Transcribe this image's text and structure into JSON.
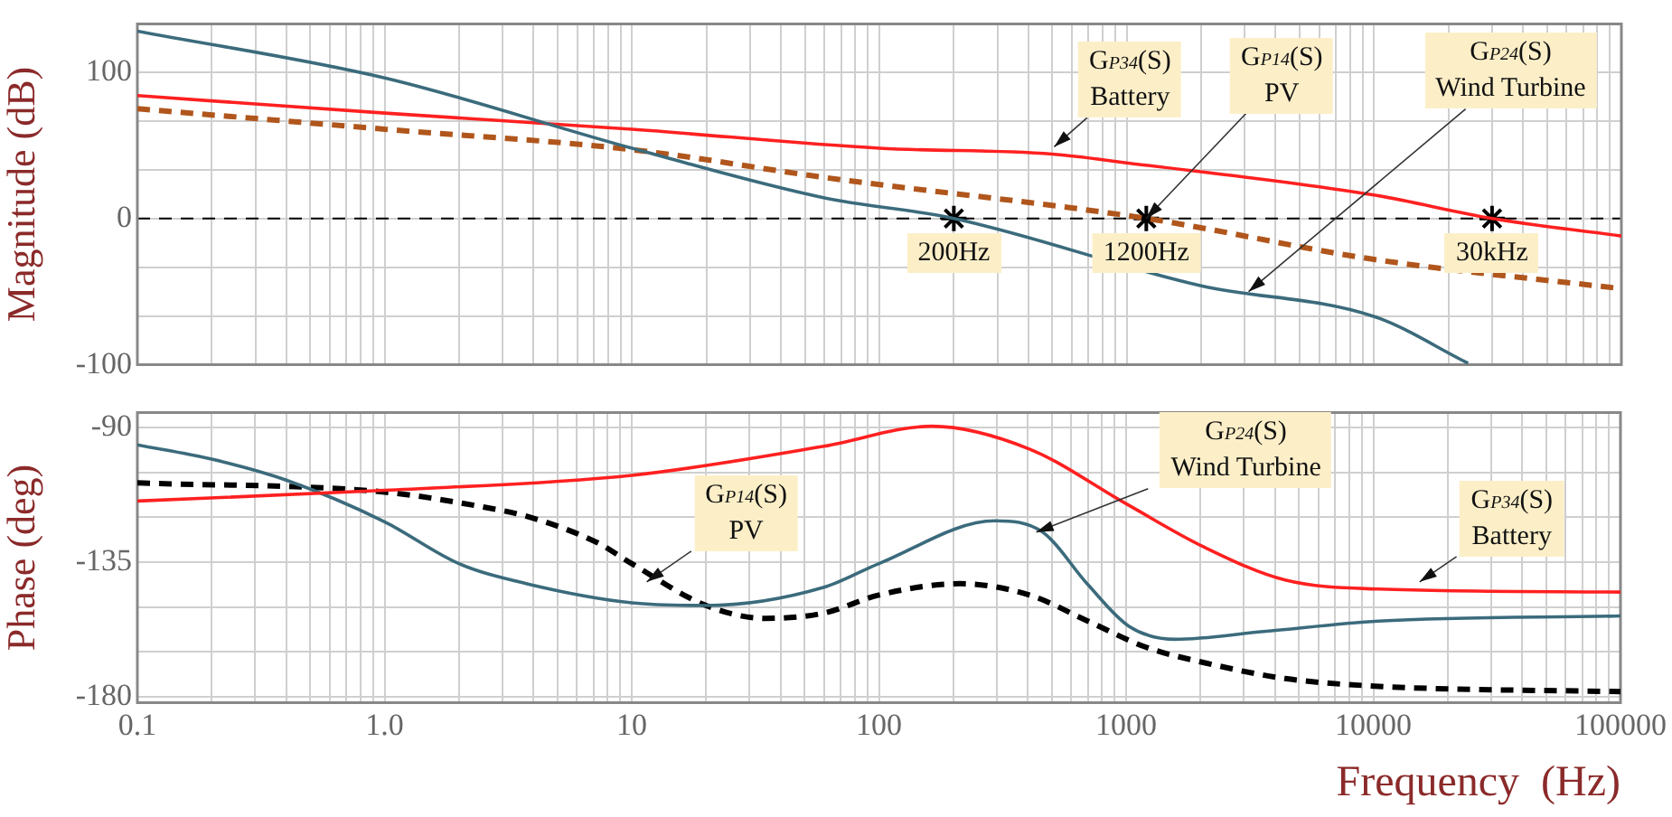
{
  "chart_data": [
    {
      "type": "line",
      "ylabel": "Magnitude (dB)",
      "xlim": [
        0.1,
        100000
      ],
      "ylim": [
        -100,
        133
      ],
      "xticks": [
        {
          "value": 0.1,
          "label": null
        },
        {
          "value": 0.2,
          "label": null
        },
        {
          "value": 0.3,
          "label": null
        },
        {
          "value": 0.4,
          "label": null
        },
        {
          "value": 0.5,
          "label": null
        },
        {
          "value": 0.6,
          "label": null
        },
        {
          "value": 0.7,
          "label": null
        },
        {
          "value": 0.8,
          "label": null
        },
        {
          "value": 0.9,
          "label": null
        },
        {
          "value": 1,
          "label": null
        },
        {
          "value": 2,
          "label": null
        },
        {
          "value": 3,
          "label": null
        },
        {
          "value": 4,
          "label": null
        },
        {
          "value": 5,
          "label": null
        },
        {
          "value": 6,
          "label": null
        },
        {
          "value": 7,
          "label": null
        },
        {
          "value": 8,
          "label": null
        },
        {
          "value": 9,
          "label": null
        },
        {
          "value": 10,
          "label": null
        },
        {
          "value": 20,
          "label": null
        },
        {
          "value": 30,
          "label": null
        },
        {
          "value": 40,
          "label": null
        },
        {
          "value": 50,
          "label": null
        },
        {
          "value": 60,
          "label": null
        },
        {
          "value": 70,
          "label": null
        },
        {
          "value": 80,
          "label": null
        },
        {
          "value": 90,
          "label": null
        },
        {
          "value": 100,
          "label": null
        },
        {
          "value": 200,
          "label": null
        },
        {
          "value": 300,
          "label": null
        },
        {
          "value": 400,
          "label": null
        },
        {
          "value": 500,
          "label": null
        },
        {
          "value": 600,
          "label": null
        },
        {
          "value": 700,
          "label": null
        },
        {
          "value": 800,
          "label": null
        },
        {
          "value": 900,
          "label": null
        },
        {
          "value": 1000,
          "label": null
        },
        {
          "value": 2000,
          "label": null
        },
        {
          "value": 3000,
          "label": null
        },
        {
          "value": 4000,
          "label": null
        },
        {
          "value": 5000,
          "label": null
        },
        {
          "value": 6000,
          "label": null
        },
        {
          "value": 7000,
          "label": null
        },
        {
          "value": 8000,
          "label": null
        },
        {
          "value": 9000,
          "label": null
        },
        {
          "value": 10000,
          "label": null
        },
        {
          "value": 20000,
          "label": null
        },
        {
          "value": 30000,
          "label": null
        },
        {
          "value": 40000,
          "label": null
        },
        {
          "value": 50000,
          "label": null
        },
        {
          "value": 60000,
          "label": null
        },
        {
          "value": 70000,
          "label": null
        },
        {
          "value": 80000,
          "label": null
        },
        {
          "value": 90000,
          "label": null
        },
        {
          "value": 100000,
          "label": null
        }
      ],
      "yticks": [
        -100,
        {
          "value": -66.7,
          "label": null
        },
        {
          "value": -33.3,
          "label": null
        },
        0,
        {
          "value": 33.3,
          "label": null
        },
        {
          "value": 66.7,
          "label": null
        },
        100
      ],
      "tick_labels": "y",
      "grid": true,
      "legend": false,
      "log": "x",
      "series": [
        {
          "color": "#3b6b7c",
          "x": [
            0.1,
            1,
            10,
            60,
            200,
            2000,
            10000,
            24000
          ],
          "values": [
            128,
            96,
            48,
            14,
            0,
            -46,
            -67,
            -99
          ]
        },
        {
          "color": "#ff2020",
          "x": [
            0.1,
            1,
            10,
            100,
            500,
            1000,
            10000,
            30000,
            100000
          ],
          "values": [
            84,
            72,
            61,
            48,
            44,
            38,
            16,
            0,
            -12
          ]
        },
        {
          "color": "#b0561c",
          "line_style": "dashed",
          "x": [
            0.1,
            1,
            10,
            60,
            1200,
            10000,
            100000
          ],
          "values": [
            75,
            61,
            47,
            28,
            0,
            -28,
            -48
          ]
        },
        {
          "type": "scatter",
          "color": "#000000",
          "marker": "cross",
          "x": [
            200,
            1200,
            30000
          ],
          "values": [
            0,
            0,
            0
          ]
        }
      ],
      "ref_lines": [
        {
          "axis": "y",
          "value": 0,
          "color": "#000000",
          "line_style": "dashed"
        }
      ],
      "annotations": [
        {
          "text": "G$_{P34}$(S)\nBattery",
          "x": 509,
          "y": 49
        },
        {
          "text": "G$_{P14}$(S)\nPV",
          "x": 1200,
          "y": 0
        },
        {
          "text": "G$_{P24}$(S)\nWind Turbine",
          "x": 3110,
          "y": -50
        },
        {
          "text": "200Hz",
          "x": 200,
          "y": 0
        },
        {
          "text": "1200Hz",
          "x": 1200,
          "y": 0
        },
        {
          "text": "30kHz",
          "x": 30000,
          "y": 0
        }
      ]
    },
    {
      "type": "line",
      "ylabel": "Phase (deg)",
      "xlabel": "Frequency  (Hz)",
      "xlim": [
        0.1,
        100000
      ],
      "ylim": [
        -182,
        -85
      ],
      "xticks": [
        {
          "value": 0.1,
          "label": "0.1"
        },
        {
          "value": 0.2,
          "label": null
        },
        {
          "value": 0.3,
          "label": null
        },
        {
          "value": 0.4,
          "label": null
        },
        {
          "value": 0.5,
          "label": null
        },
        {
          "value": 0.6,
          "label": null
        },
        {
          "value": 0.7,
          "label": null
        },
        {
          "value": 0.8,
          "label": null
        },
        {
          "value": 0.9,
          "label": null
        },
        {
          "value": 1,
          "label": "1.0"
        },
        {
          "value": 2,
          "label": null
        },
        {
          "value": 3,
          "label": null
        },
        {
          "value": 4,
          "label": null
        },
        {
          "value": 5,
          "label": null
        },
        {
          "value": 6,
          "label": null
        },
        {
          "value": 7,
          "label": null
        },
        {
          "value": 8,
          "label": null
        },
        {
          "value": 9,
          "label": null
        },
        10,
        {
          "value": 20,
          "label": null
        },
        {
          "value": 30,
          "label": null
        },
        {
          "value": 40,
          "label": null
        },
        {
          "value": 50,
          "label": null
        },
        {
          "value": 60,
          "label": null
        },
        {
          "value": 70,
          "label": null
        },
        {
          "value": 80,
          "label": null
        },
        {
          "value": 90,
          "label": null
        },
        100,
        {
          "value": 200,
          "label": null
        },
        {
          "value": 300,
          "label": null
        },
        {
          "value": 400,
          "label": null
        },
        {
          "value": 500,
          "label": null
        },
        {
          "value": 600,
          "label": null
        },
        {
          "value": 700,
          "label": null
        },
        {
          "value": 800,
          "label": null
        },
        {
          "value": 900,
          "label": null
        },
        1000,
        {
          "value": 2000,
          "label": null
        },
        {
          "value": 3000,
          "label": null
        },
        {
          "value": 4000,
          "label": null
        },
        {
          "value": 5000,
          "label": null
        },
        {
          "value": 6000,
          "label": null
        },
        {
          "value": 7000,
          "label": null
        },
        {
          "value": 8000,
          "label": null
        },
        {
          "value": 9000,
          "label": null
        },
        10000,
        {
          "value": 20000,
          "label": null
        },
        {
          "value": 30000,
          "label": null
        },
        {
          "value": 40000,
          "label": null
        },
        {
          "value": 50000,
          "label": null
        },
        {
          "value": 60000,
          "label": null
        },
        {
          "value": 70000,
          "label": null
        },
        {
          "value": 80000,
          "label": null
        },
        {
          "value": 90000,
          "label": null
        },
        100000
      ],
      "yticks": [
        -180,
        {
          "value": -165,
          "label": null
        },
        {
          "value": -150,
          "label": null
        },
        -135,
        {
          "value": -120,
          "label": null
        },
        {
          "value": -105,
          "label": null
        },
        -90
      ],
      "grid": true,
      "legend": false,
      "log": "x",
      "series": [
        {
          "color": "#ff2020",
          "x": [
            0.1,
            1,
            10,
            60,
            164,
            406,
            1000,
            2070,
            4400,
            10500,
            100000
          ],
          "values": [
            -114.6,
            -111,
            -106,
            -96.3,
            -89.6,
            -97.2,
            -115.5,
            -130,
            -141,
            -144,
            -145
          ]
        },
        {
          "color": "#3b6b7c",
          "x": [
            0.1,
            0.2,
            0.4,
            1,
            2,
            3.8,
            10,
            20,
            60,
            100,
            295,
            460,
            700,
            1030,
            1580,
            3600,
            10500,
            100000
          ],
          "values": [
            -95.8,
            -100.6,
            -107.6,
            -121.5,
            -135.5,
            -142.3,
            -148.6,
            -149.5,
            -143.4,
            -135.5,
            -121.2,
            -125,
            -142.5,
            -156.5,
            -160.8,
            -158.2,
            -154.7,
            -153
          ]
        },
        {
          "color": "#000000",
          "line_style": "dashed",
          "x": [
            0.1,
            1,
            2.4,
            3.8,
            7.3,
            10,
            20,
            35,
            60,
            100,
            213,
            406,
            700,
            1200,
            2070,
            4400,
            10500,
            100000
          ],
          "values": [
            -108.5,
            -111.6,
            -116.3,
            -119.8,
            -128.6,
            -135.5,
            -149.5,
            -153.8,
            -152,
            -146,
            -142.2,
            -146,
            -154.7,
            -163.4,
            -168.6,
            -173.9,
            -176.5,
            -178.3
          ]
        }
      ],
      "annotations": [
        {
          "text": "G$_{P14}$(S)\nPV",
          "x": 11.5,
          "y": -141.6
        },
        {
          "text": "G$_{P24}$(S)\nWind Turbine",
          "x": 433,
          "y": -125
        },
        {
          "text": "G$_{P34}$(S)\nBattery",
          "x": 15400,
          "y": -141.6
        }
      ]
    }
  ]
}
